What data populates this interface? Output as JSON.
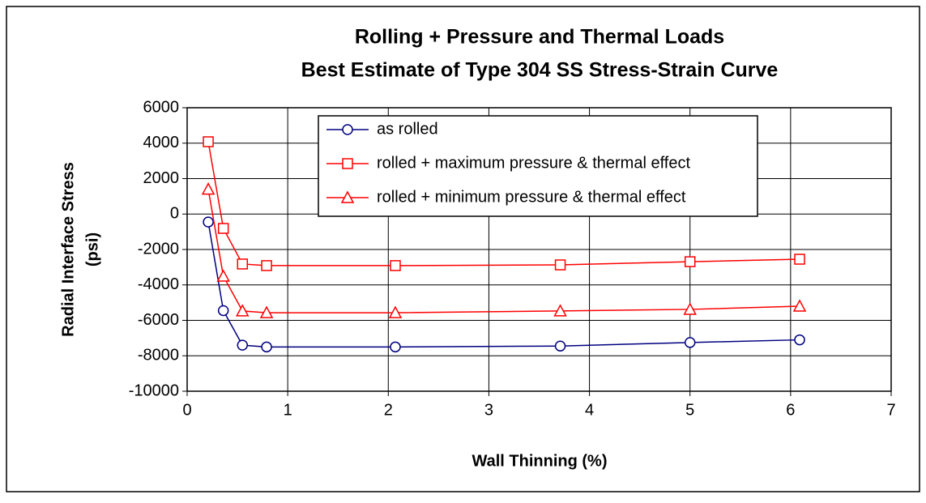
{
  "chart_data": {
    "type": "line",
    "title": [
      "Rolling + Pressure and Thermal Loads",
      "Best Estimate of Type 304 SS Stress-Strain Curve"
    ],
    "xlabel": "Wall Thinning (%)",
    "ylabel": [
      "Radial Interface Stress",
      "(psi)"
    ],
    "x": [
      0.21,
      0.36,
      0.55,
      0.79,
      2.07,
      3.71,
      5.0,
      6.09
    ],
    "series": [
      {
        "name": "as rolled",
        "color": "#000080",
        "marker": "circle",
        "values": [
          -450,
          -5450,
          -7400,
          -7500,
          -7500,
          -7450,
          -7250,
          -7100
        ]
      },
      {
        "name": "rolled + maximum pressure & thermal effect",
        "color": "#ff0000",
        "marker": "square",
        "values": [
          4080,
          -810,
          -2820,
          -2910,
          -2910,
          -2870,
          -2690,
          -2550
        ]
      },
      {
        "name": "rolled + minimum pressure & thermal effect",
        "color": "#ff0000",
        "marker": "triangle",
        "values": [
          1400,
          -3510,
          -5470,
          -5570,
          -5570,
          -5470,
          -5380,
          -5200
        ]
      }
    ],
    "xlim": [
      0,
      7
    ],
    "xticks": [
      0,
      1,
      2,
      3,
      4,
      5,
      6,
      7
    ],
    "ylim": [
      -10000,
      6000
    ],
    "yticks": [
      -10000,
      -8000,
      -6000,
      -4000,
      -2000,
      0,
      2000,
      4000,
      6000
    ],
    "grid": true,
    "legend": "top"
  }
}
